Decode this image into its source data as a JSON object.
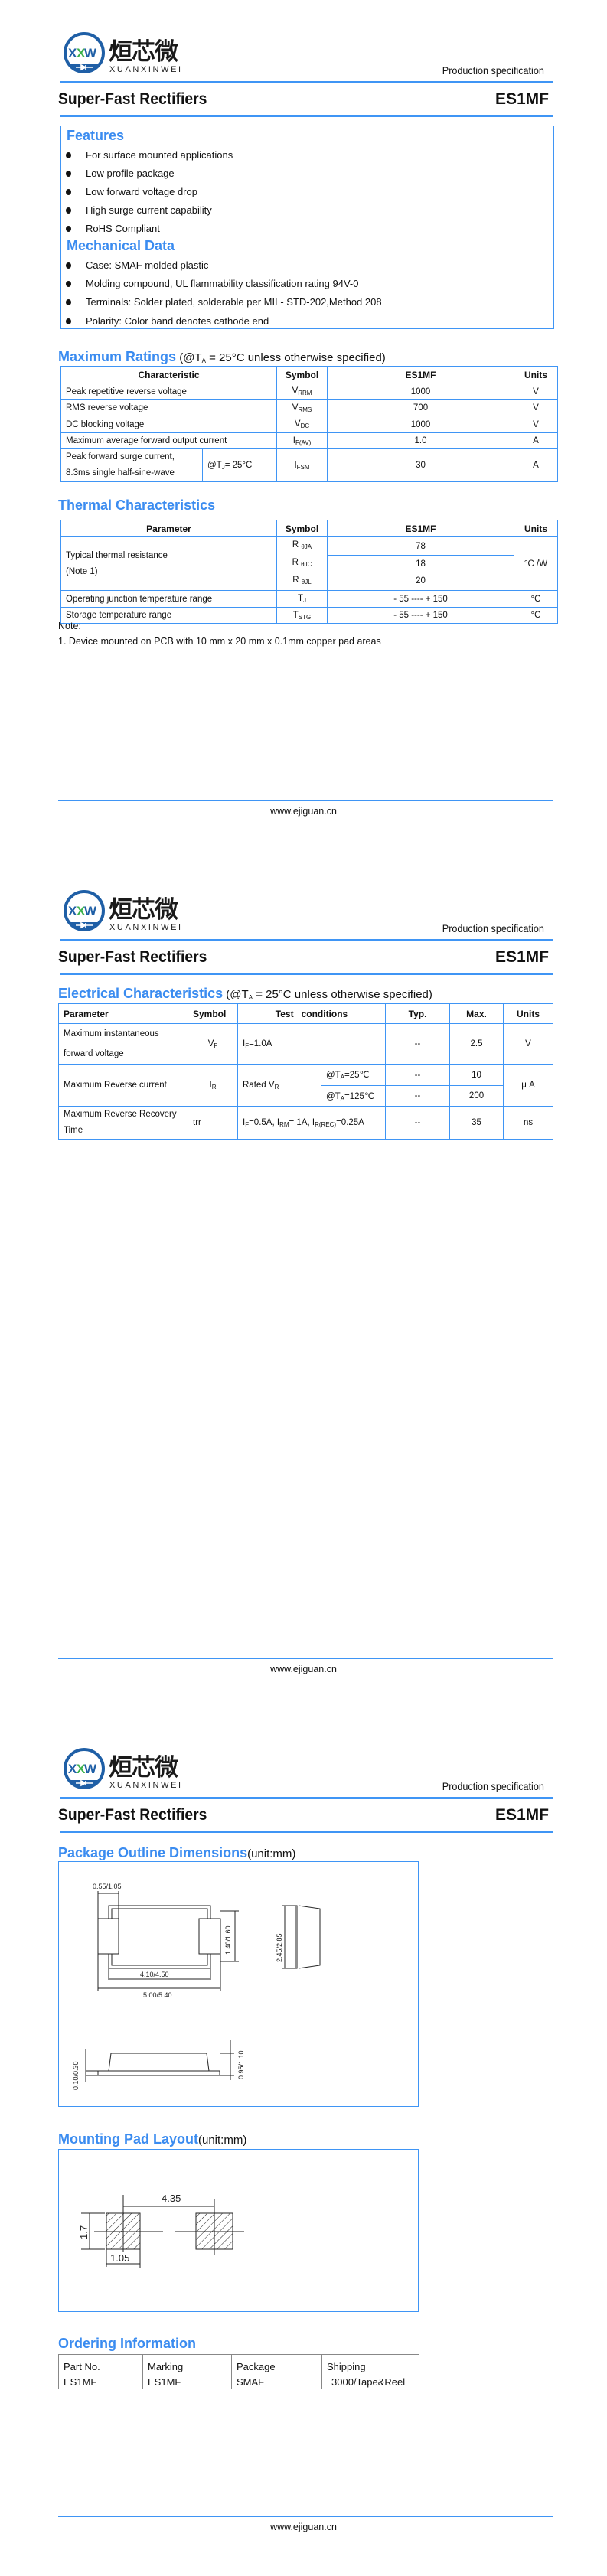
{
  "header": {
    "logo": {
      "mark_left": "X",
      "mark_mid": "X",
      "mark_right": "W",
      "cn": "烜芯微",
      "en": "XUANXINWEI"
    },
    "spec": "Production specification",
    "title": "Super-Fast Rectifiers",
    "part": "ES1MF"
  },
  "footer": {
    "url": "www.ejiguan.cn"
  },
  "colors": {
    "accent": "#3b8cf0",
    "logo_blue": "#1f5fa6",
    "logo_green": "#3bb24a"
  },
  "features": {
    "title": "Features",
    "items": [
      "For surface mounted applications",
      "Low profile package",
      "Low forward voltage drop",
      "High surge current capability",
      "RoHS Compliant"
    ]
  },
  "mechanical": {
    "title": "Mechanical Data",
    "items": [
      "Case: SMAF molded plastic",
      "Molding compound, UL flammability classification rating 94V-0",
      "Terminals: Solder plated, solderable per MIL- STD-202,Method 208",
      "Polarity: Color band denotes cathode end"
    ]
  },
  "max_ratings": {
    "title": "Maximum Ratings",
    "cond": [
      {
        "t": " (@T"
      },
      {
        "s": "A"
      },
      {
        "t": " = 25°C unless otherwise specified)"
      }
    ],
    "headers": [
      "Characteristic",
      "Symbol",
      "ES1MF",
      "Units"
    ],
    "rows": [
      {
        "char": "Peak repetitive reverse voltage",
        "sym": [
          {
            "t": "V"
          },
          {
            "s": "RRM"
          }
        ],
        "value": "1000",
        "unit": "V"
      },
      {
        "char": "RMS reverse voltage",
        "sym": [
          {
            "t": "V"
          },
          {
            "s": "RMS"
          }
        ],
        "value": "700",
        "unit": "V"
      },
      {
        "char": "DC blocking voltage",
        "sym": [
          {
            "t": "V"
          },
          {
            "s": "DC"
          }
        ],
        "value": "1000",
        "unit": "V"
      },
      {
        "char": "Maximum average forward output current",
        "sym": [
          {
            "t": "I"
          },
          {
            "s": "F(AV)"
          }
        ],
        "value": "1.0",
        "unit": "A"
      },
      {
        "char": "Peak forward surge current,",
        "char2": "8.3ms single half-sine-wave",
        "cond": [
          {
            "t": "@T"
          },
          {
            "s": "J"
          },
          {
            "t": "= 25°C"
          }
        ],
        "sym": [
          {
            "t": "I"
          },
          {
            "s": "FSM"
          }
        ],
        "value": "30",
        "unit": "A"
      }
    ]
  },
  "thermal": {
    "title": "Thermal Characteristics",
    "headers": [
      "Parameter",
      "Symbol",
      "ES1MF",
      "Units"
    ],
    "resistance": {
      "param": "Typical thermal resistance",
      "param2": "(Note 1)",
      "unit": "°C /W",
      "rows": [
        {
          "sym": [
            {
              "t": "R "
            },
            {
              "s": "θJA"
            }
          ],
          "value": "78"
        },
        {
          "sym": [
            {
              "t": "R "
            },
            {
              "s": "θJC"
            }
          ],
          "value": "18"
        },
        {
          "sym": [
            {
              "t": "R "
            },
            {
              "s": "θJL"
            }
          ],
          "value": "20"
        }
      ]
    },
    "rows": [
      {
        "param": "Operating junction temperature range",
        "sym": [
          {
            "t": "T"
          },
          {
            "s": "J"
          }
        ],
        "value": "- 55 ---- + 150",
        "unit": "°C"
      },
      {
        "param": "Storage temperature range",
        "sym": [
          {
            "t": "T"
          },
          {
            "s": "STG"
          }
        ],
        "value": "- 55 ---- + 150",
        "unit": "°C"
      }
    ]
  },
  "note": {
    "label": "Note:",
    "text": "1. Device mounted on PCB with 10 mm x 20 mm x 0.1mm copper pad areas"
  },
  "electrical": {
    "title": "Electrical Characteristics",
    "cond": [
      {
        "t": " (@T"
      },
      {
        "s": "A"
      },
      {
        "t": " = 25°C unless otherwise specified)"
      }
    ],
    "headers": [
      "Parameter",
      "Symbol",
      "Test   conditions",
      "Typ.",
      "Max.",
      "Units"
    ],
    "vf": {
      "param": "Maximum instantaneous",
      "param2": "forward voltage",
      "sym": [
        {
          "t": "V"
        },
        {
          "s": "F"
        }
      ],
      "test": [
        {
          "t": "I"
        },
        {
          "s": "F"
        },
        {
          "t": "=1.0A"
        }
      ],
      "typ": "--",
      "max": "2.5",
      "unit": "V"
    },
    "ir": {
      "param": "Maximum Reverse current",
      "sym": [
        {
          "t": "I"
        },
        {
          "s": "R"
        }
      ],
      "test": [
        {
          "t": "Rated V"
        },
        {
          "s": "R"
        }
      ],
      "unit": "μ A",
      "sub": [
        {
          "cond": [
            {
              "t": "@T"
            },
            {
              "s": "A"
            },
            {
              "t": "=25℃"
            }
          ],
          "typ": "--",
          "max": "10"
        },
        {
          "cond": [
            {
              "t": "@T"
            },
            {
              "s": "A"
            },
            {
              "t": "=125℃"
            }
          ],
          "typ": "--",
          "max": "200"
        }
      ]
    },
    "trr": {
      "param": "Maximum Reverse Recovery",
      "param2": "Time",
      "sym": [
        {
          "t": "trr"
        }
      ],
      "test": [
        {
          "t": "I"
        },
        {
          "s": "F"
        },
        {
          "t": "=0.5A, I"
        },
        {
          "s": "RM"
        },
        {
          "t": "= 1A, I"
        },
        {
          "s": "R(REC)"
        },
        {
          "t": "=0.25A"
        }
      ],
      "typ": "--",
      "max": "35",
      "unit": "ns"
    }
  },
  "package": {
    "title": "Package Outline Dimensions",
    "unit": "(unit:mm)",
    "dims": {
      "terminal": "0.55/1.05",
      "tab_height": "1.40/1.60",
      "body_width": "2.45/2.85",
      "body_length": "4.10/4.50",
      "total_length": "5.00/5.40",
      "standoff": "0.10/0.30",
      "height": "0.95/1.10"
    }
  },
  "pad": {
    "title": "Mounting Pad Layout",
    "unit": "(unit:mm)",
    "dims": {
      "pitch": "4.35",
      "height": "1.7",
      "width": "1.05"
    }
  },
  "ordering": {
    "title": "Ordering Information",
    "headers": [
      "Part No.",
      "Marking",
      "Package",
      "Shipping"
    ],
    "row": [
      "ES1MF",
      "ES1MF",
      "SMAF",
      "3000/Tape&Reel"
    ]
  }
}
